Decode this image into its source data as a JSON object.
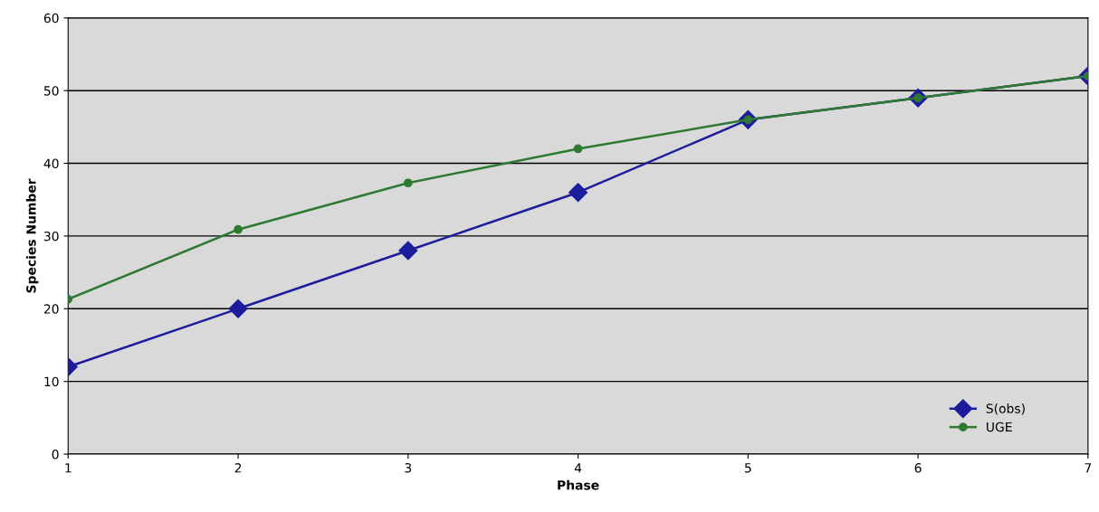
{
  "chart_data": {
    "type": "line",
    "xlabel": "Phase",
    "ylabel": "Species Number",
    "x": [
      1,
      2,
      3,
      4,
      5,
      6,
      7
    ],
    "series": [
      {
        "name": "S(obs)",
        "color": "#1c1c9c",
        "marker": "diamond",
        "values": [
          12,
          20,
          28,
          36,
          46,
          49,
          52
        ]
      },
      {
        "name": "UGE",
        "color": "#2e7a32",
        "marker": "circle",
        "values": [
          21.3,
          30.9,
          37.3,
          42,
          46,
          49,
          52
        ]
      }
    ],
    "xlim": [
      1,
      7
    ],
    "xticks": [
      1,
      2,
      3,
      4,
      5,
      6,
      7
    ],
    "ylim": [
      0,
      60
    ],
    "yticks": [
      0,
      10,
      20,
      30,
      40,
      50,
      60
    ],
    "grid": "y",
    "legend": "bottom right",
    "line_style": "solid"
  }
}
